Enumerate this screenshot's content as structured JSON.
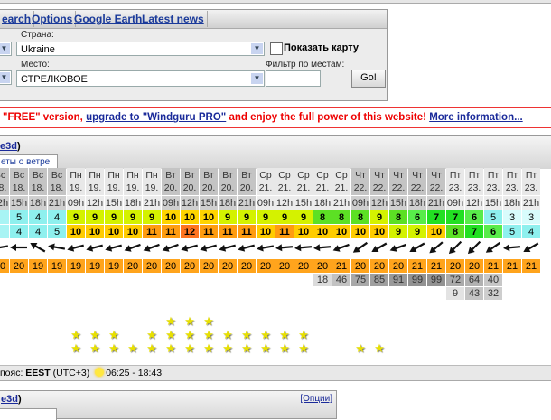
{
  "tabs": [
    "earch",
    "Options",
    "Google Earth",
    "Latest news"
  ],
  "form": {
    "country_label": "Страна:",
    "country_value": "Ukraine",
    "show_map_label": "Показать карту",
    "show_map_checked": false,
    "place_label": "Место:",
    "place_value": "СТРЕЛКОВОЕ",
    "filter_label": "Фильтр по местам:",
    "filter_value": "",
    "go_label": "Go!"
  },
  "banner": {
    "text1": "\"FREE\" version, ",
    "link1": "upgrade to \"Windguru PRO\"",
    "text2": " and enjoy the full power of this website! ",
    "link2": "More information..."
  },
  "panel": {
    "title_link": "e3d",
    "title_suffix": ")",
    "tab": "еты о ветре"
  },
  "forecast": {
    "days": [
      "Вс",
      "Вс",
      "Вс",
      "Вс",
      "Пн",
      "Пн",
      "Пн",
      "Пн",
      "Пн",
      "Вт",
      "Вт",
      "Вт",
      "Вт",
      "Вт",
      "Ср",
      "Ср",
      "Ср",
      "Ср",
      "Ср",
      "Чт",
      "Чт",
      "Чт",
      "Чт",
      "Чт",
      "Пт",
      "Пт",
      "Пт",
      "Пт",
      "Пт"
    ],
    "dates": [
      "18.",
      "18.",
      "18.",
      "18.",
      "19.",
      "19.",
      "19.",
      "19.",
      "19.",
      "20.",
      "20.",
      "20.",
      "20.",
      "20.",
      "21.",
      "21.",
      "21.",
      "21.",
      "21.",
      "22.",
      "22.",
      "22.",
      "22.",
      "22.",
      "23.",
      "23.",
      "23.",
      "23.",
      "23."
    ],
    "hours": [
      "12h",
      "15h",
      "18h",
      "21h",
      "09h",
      "12h",
      "15h",
      "18h",
      "21h",
      "09h",
      "12h",
      "15h",
      "18h",
      "21h",
      "09h",
      "12h",
      "15h",
      "18h",
      "21h",
      "09h",
      "12h",
      "15h",
      "18h",
      "21h",
      "09h",
      "12h",
      "15h",
      "18h",
      "21h"
    ],
    "wind": [
      "",
      5,
      4,
      4,
      9,
      9,
      9,
      9,
      9,
      10,
      10,
      10,
      9,
      9,
      9,
      9,
      9,
      8,
      8,
      8,
      9,
      8,
      6,
      7,
      7,
      6,
      5,
      3,
      3
    ],
    "gusts": [
      "",
      4,
      4,
      5,
      10,
      10,
      10,
      10,
      11,
      11,
      12,
      11,
      11,
      11,
      10,
      11,
      10,
      10,
      10,
      10,
      10,
      9,
      9,
      10,
      8,
      7,
      6,
      5,
      4
    ],
    "direction_rotation_deg": [
      -10,
      0,
      30,
      10,
      -15,
      -15,
      -15,
      -20,
      -20,
      -20,
      -15,
      -15,
      -15,
      -15,
      -10,
      -5,
      -5,
      -5,
      -20,
      -35,
      -30,
      -20,
      -30,
      -40,
      -45,
      -45,
      -35,
      -5,
      -30
    ],
    "temperature": [
      20,
      20,
      19,
      19,
      19,
      19,
      19,
      20,
      20,
      20,
      20,
      20,
      20,
      20,
      20,
      20,
      20,
      20,
      21,
      20,
      20,
      20,
      21,
      21,
      20,
      20,
      21,
      21,
      21
    ],
    "clouds_high": [
      "",
      "",
      "",
      "",
      "",
      "",
      "",
      "",
      "",
      "",
      "",
      "",
      "",
      "",
      "",
      "",
      "",
      18,
      46,
      75,
      85,
      91,
      99,
      99,
      72,
      64,
      40,
      "",
      ""
    ],
    "clouds_mid": [
      "",
      "",
      "",
      "",
      "",
      "",
      "",
      "",
      "",
      "",
      "",
      "",
      "",
      "",
      "",
      "",
      "",
      "",
      "",
      "",
      "",
      "",
      "",
      "",
      9,
      43,
      32,
      "",
      ""
    ],
    "stars": [
      0,
      0,
      0,
      0,
      2,
      2,
      2,
      1,
      2,
      3,
      3,
      3,
      2,
      2,
      2,
      2,
      2,
      0,
      0,
      1,
      1,
      0,
      0,
      0,
      0,
      0,
      0,
      0,
      0
    ]
  },
  "footer": {
    "tz_prefix": "пояс: ",
    "tz": "EEST",
    "tz_offset": " (UTC+3)",
    "sun_times": "06:25 - 18:43"
  },
  "panel2": {
    "title_link": "e3d",
    "title_suffix": ")",
    "options": "[Опции]"
  },
  "colors": {
    "link": "#1a2a9a",
    "banner_red": "#e00000",
    "temperature": "#ffa41c"
  }
}
